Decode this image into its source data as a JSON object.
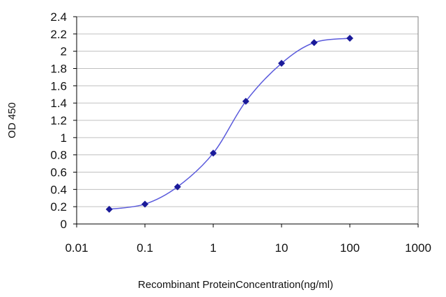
{
  "chart_data": {
    "type": "line",
    "title": "",
    "xlabel": "Recombinant ProteinConcentration(ng/ml)",
    "ylabel": "OD 450",
    "xscale": "log",
    "xlim": [
      0.01,
      1000
    ],
    "ylim": [
      0,
      2.4
    ],
    "grid": "horizontal",
    "legend": "none",
    "x_ticks": [
      "0.01",
      "0.1",
      "1",
      "10",
      "100",
      "1000"
    ],
    "y_ticks": [
      "0",
      "0.2",
      "0.4",
      "0.6",
      "0.8",
      "1",
      "1.2",
      "1.4",
      "1.6",
      "1.8",
      "2",
      "2.2",
      "2.4"
    ],
    "series": [
      {
        "x": [
          0.03,
          0.1,
          0.3,
          1,
          3,
          10,
          30,
          100
        ],
        "y": [
          0.17,
          0.23,
          0.43,
          0.82,
          1.42,
          1.86,
          2.1,
          2.15
        ],
        "line_color": "#5a5adc",
        "marker_color": "#1a1a99"
      }
    ]
  }
}
